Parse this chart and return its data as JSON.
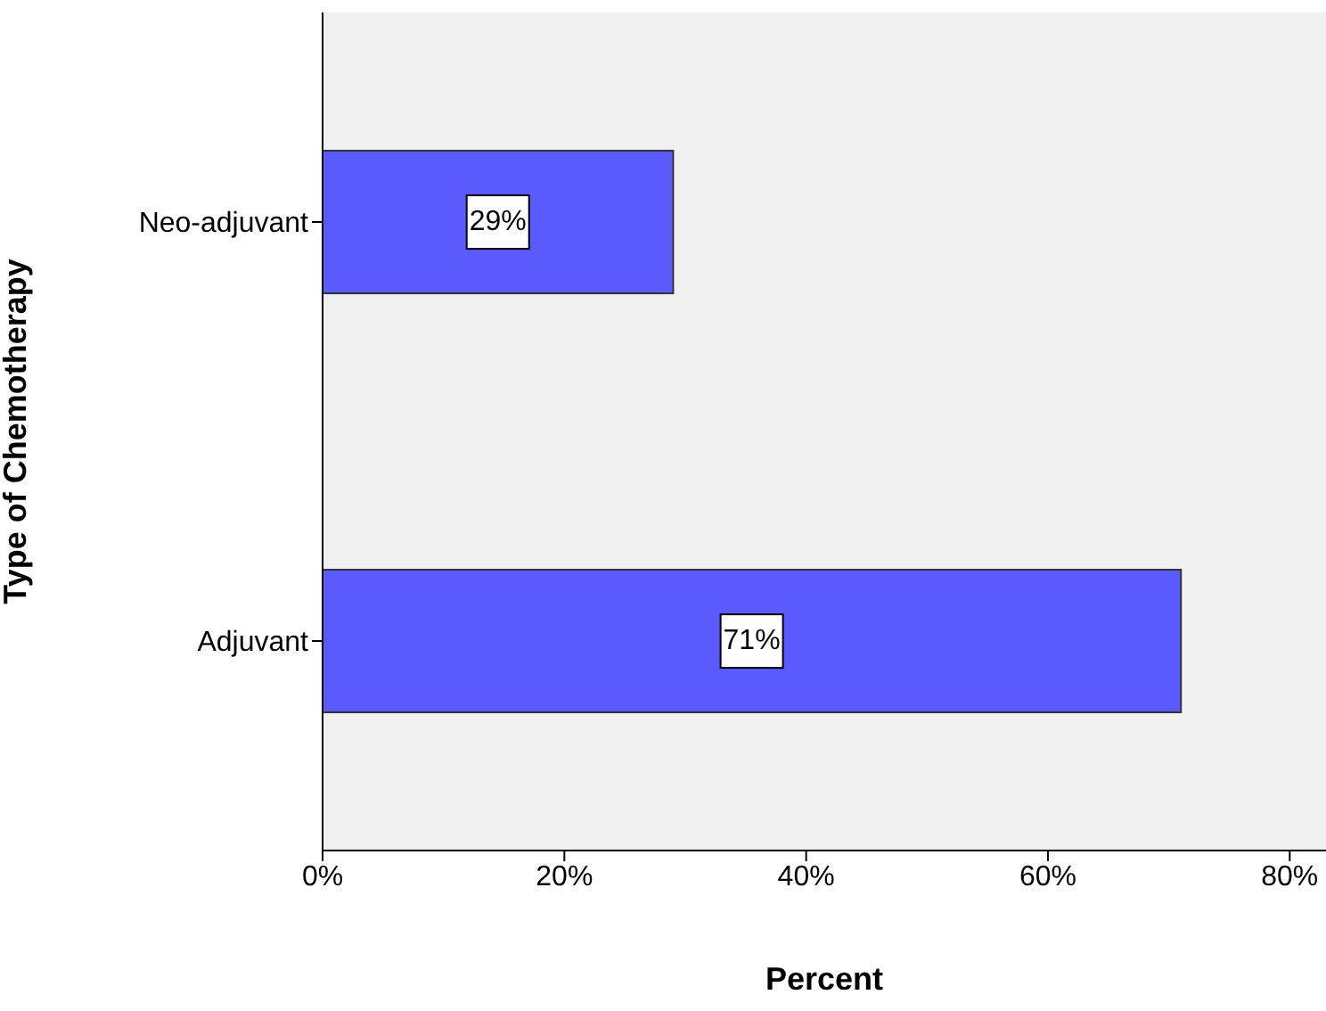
{
  "chart_data": {
    "type": "bar",
    "orientation": "horizontal",
    "categories": [
      "Neo-adjuvant",
      "Adjuvant"
    ],
    "values": [
      29,
      71
    ],
    "color": "#5a5aff",
    "value_labels": [
      "29%",
      "71%"
    ],
    "xlabel": "Percent",
    "ylabel": "Type of Chemotherapy",
    "xlim": [
      0,
      83
    ],
    "xticks": [
      {
        "value": 0,
        "label": "0%"
      },
      {
        "value": 20,
        "label": "20%"
      },
      {
        "value": 40,
        "label": "40%"
      },
      {
        "value": 60,
        "label": "60%"
      },
      {
        "value": 80,
        "label": "80%"
      }
    ]
  }
}
